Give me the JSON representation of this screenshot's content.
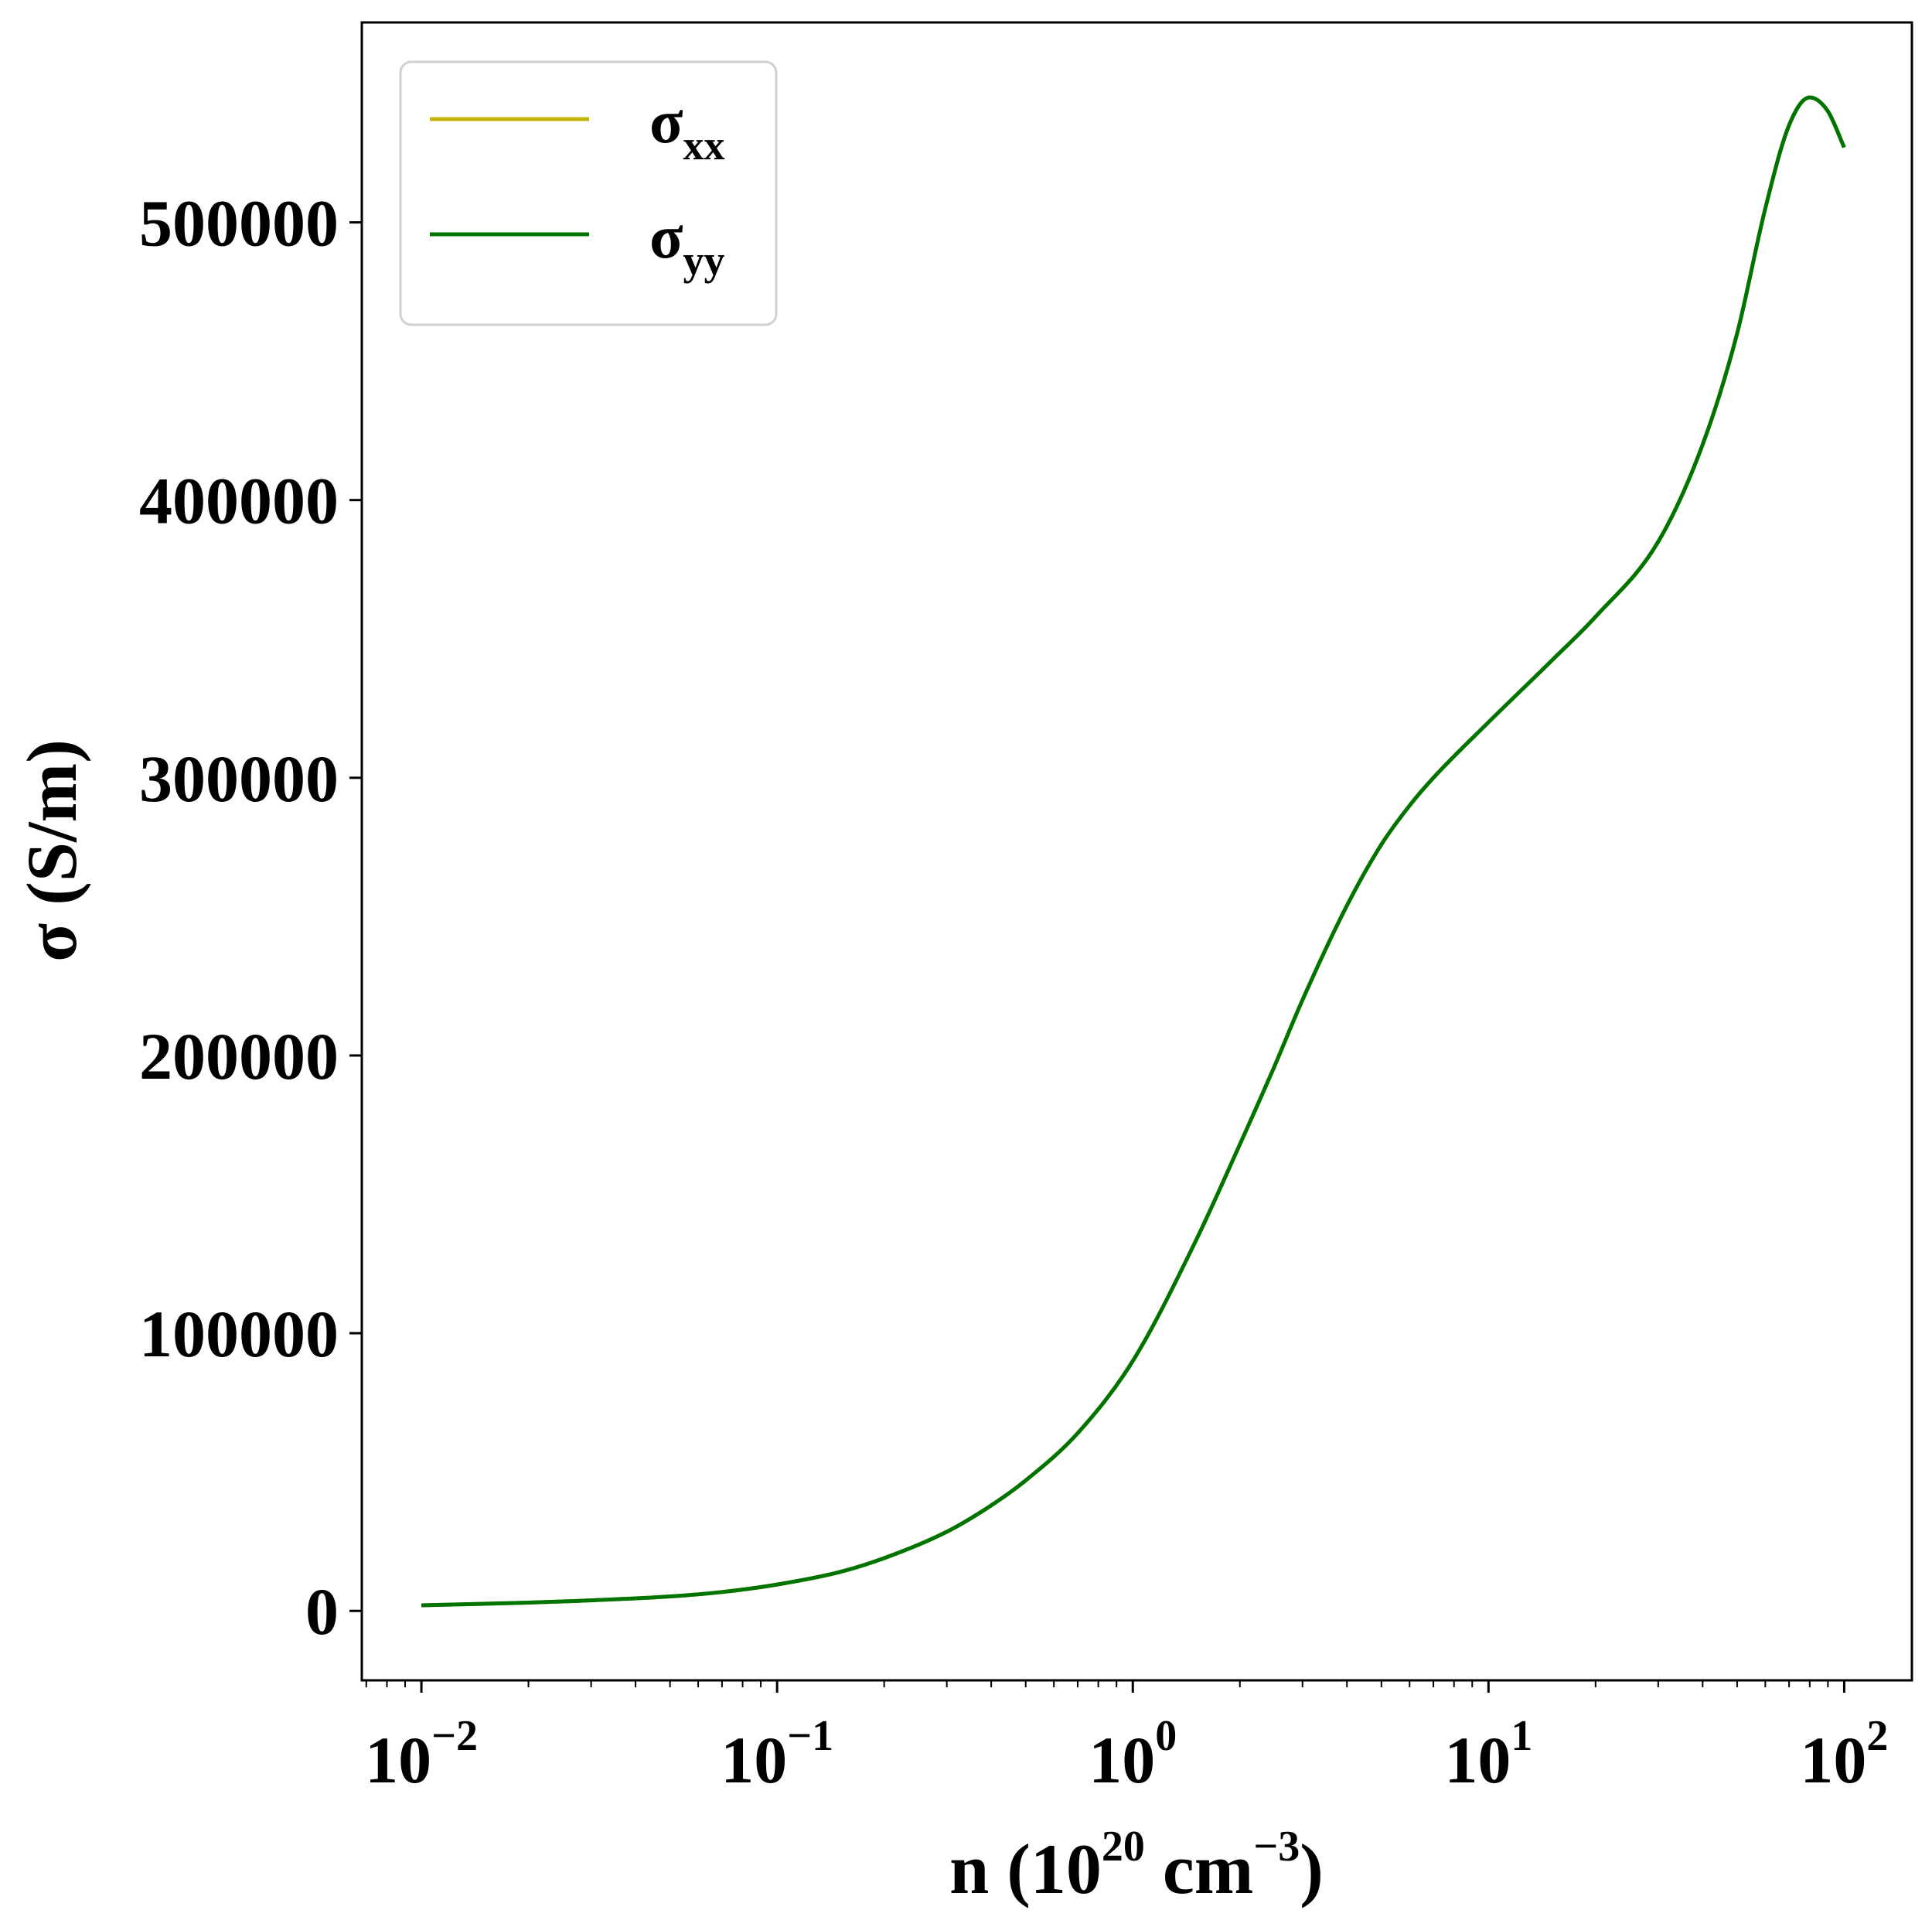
{
  "chart_data": {
    "type": "line",
    "title": "",
    "xlabel": {
      "base": "n (10",
      "sup1": "20",
      "mid": " cm",
      "sup2": "−3",
      "end": ")"
    },
    "ylabel": "σ (S/m)",
    "xscale": "log",
    "xlim": [
      0.0068,
      155
    ],
    "ylim": [
      -25000,
      572000
    ],
    "x_ticks": [
      {
        "value": 0.01,
        "base": "10",
        "exp": "−2"
      },
      {
        "value": 0.1,
        "base": "10",
        "exp": "−1"
      },
      {
        "value": 1,
        "base": "10",
        "exp": "0"
      },
      {
        "value": 10,
        "base": "10",
        "exp": "1"
      },
      {
        "value": 100,
        "base": "10",
        "exp": "2"
      }
    ],
    "y_ticks": [
      {
        "value": 0,
        "label": "0"
      },
      {
        "value": 100000,
        "label": "100000"
      },
      {
        "value": 200000,
        "label": "200000"
      },
      {
        "value": 300000,
        "label": "300000"
      },
      {
        "value": 400000,
        "label": "400000"
      },
      {
        "value": 500000,
        "label": "500000"
      }
    ],
    "grid": false,
    "legend": {
      "position": "top-left"
    },
    "x": [
      0.01,
      0.02,
      0.03,
      0.05,
      0.07,
      0.1,
      0.15,
      0.2,
      0.3,
      0.4,
      0.5,
      0.7,
      1.0,
      1.5,
      2.0,
      2.5,
      3.0,
      4.0,
      5.0,
      6.0,
      7.0,
      10,
      15,
      20,
      30,
      40,
      50,
      60,
      70,
      80,
      90,
      100
    ],
    "series": [
      {
        "name": "σ",
        "subscript": "xx",
        "color": "#c4b400",
        "values": [
          2000,
          3000,
          3800,
          5200,
          6800,
          9500,
          14000,
          19000,
          28500,
          38000,
          47000,
          64000,
          90000,
          133000,
          168000,
          196000,
          220000,
          254000,
          276000,
          290000,
          300000,
          320000,
          342000,
          358000,
          385000,
          420000,
          460000,
          505000,
          535000,
          545000,
          540000,
          527000
        ]
      },
      {
        "name": "σ",
        "subscript": "yy",
        "color": "#007400",
        "values": [
          2000,
          3000,
          3800,
          5200,
          6800,
          9500,
          14000,
          19000,
          28500,
          38000,
          47000,
          64000,
          90000,
          133000,
          168000,
          196000,
          220000,
          254000,
          276000,
          290000,
          300000,
          320000,
          342000,
          358000,
          385000,
          420000,
          460000,
          505000,
          535000,
          545000,
          540000,
          527000
        ]
      }
    ]
  }
}
